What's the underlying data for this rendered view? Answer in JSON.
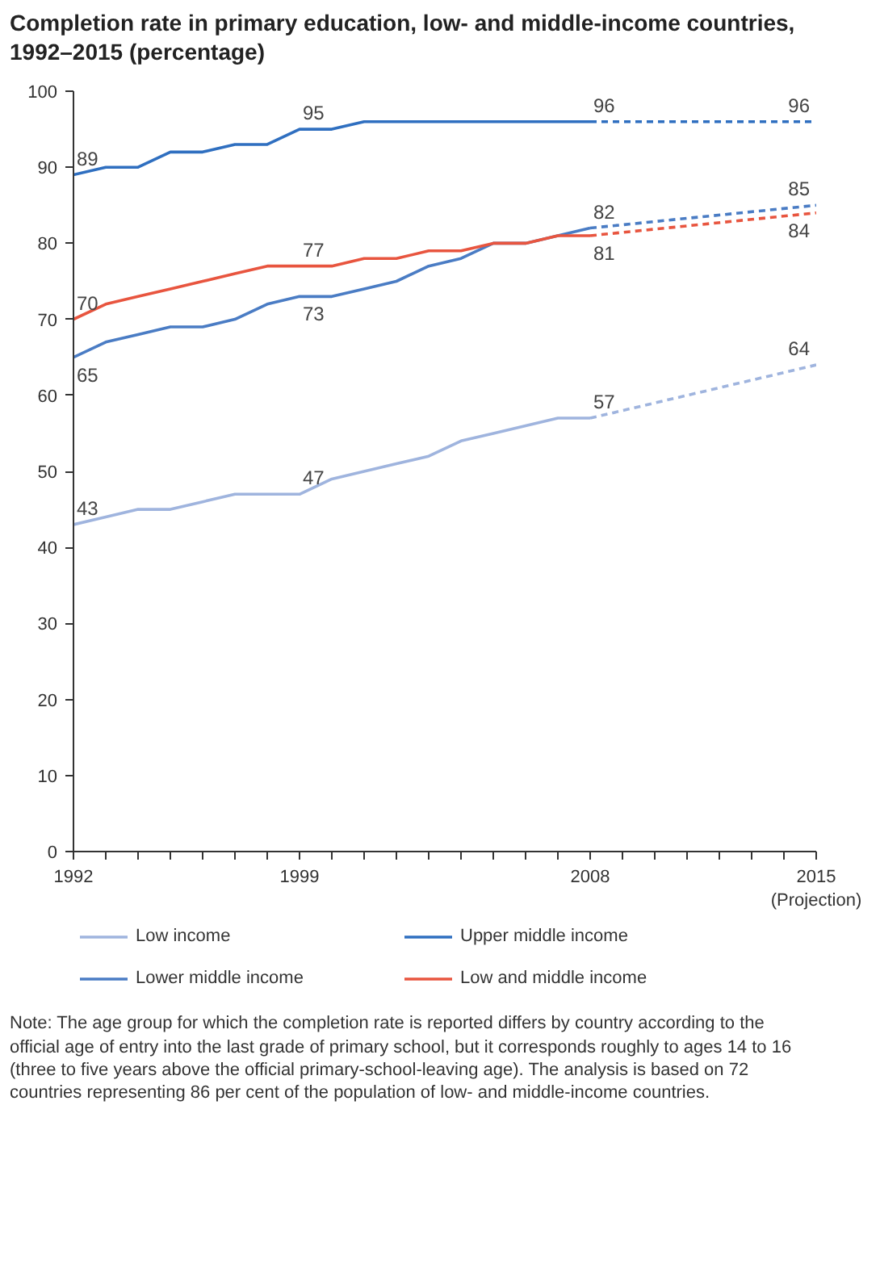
{
  "chart_data": {
    "type": "line",
    "title": "Completion rate in primary education, low- and middle-income countries, 1992–2015 (percentage)",
    "xlim": [
      1992,
      2015
    ],
    "ylim": [
      0,
      100
    ],
    "yticks": [
      0,
      10,
      20,
      30,
      40,
      50,
      60,
      70,
      80,
      90,
      100
    ],
    "xticks": [
      1992,
      {
        "value": 1993,
        "label": null
      },
      {
        "value": 1994,
        "label": null
      },
      {
        "value": 1995,
        "label": null
      },
      {
        "value": 1996,
        "label": null
      },
      {
        "value": 1997,
        "label": null
      },
      {
        "value": 1998,
        "label": null
      },
      1999,
      {
        "value": 2000,
        "label": null
      },
      {
        "value": 2001,
        "label": null
      },
      {
        "value": 2002,
        "label": null
      },
      {
        "value": 2003,
        "label": null
      },
      {
        "value": 2004,
        "label": null
      },
      {
        "value": 2005,
        "label": null
      },
      {
        "value": 2006,
        "label": null
      },
      {
        "value": 2007,
        "label": null
      },
      2008,
      {
        "value": 2009,
        "label": null
      },
      {
        "value": 2010,
        "label": null
      },
      {
        "value": 2011,
        "label": null
      },
      {
        "value": 2012,
        "label": null
      },
      {
        "value": 2013,
        "label": null
      },
      {
        "value": 2014,
        "label": null
      },
      {
        "value": 2015,
        "label": "2015\n(Projection)"
      }
    ],
    "grid": false,
    "legend": "bottom",
    "marker": "none",
    "x": [
      1992,
      1993,
      1994,
      1995,
      1996,
      1997,
      1998,
      1999,
      2000,
      2001,
      2002,
      2003,
      2004,
      2005,
      2006,
      2007,
      2008,
      2015
    ],
    "series": [
      {
        "name": "Low income",
        "color": "#9fb4de",
        "line_style": "solid",
        "values": [
          43,
          44,
          45,
          45,
          46,
          47,
          47,
          47,
          49,
          50,
          51,
          52,
          54,
          55,
          56,
          57,
          57,
          null
        ],
        "value_labels": [
          "43",
          null,
          null,
          null,
          null,
          null,
          null,
          "47",
          null,
          null,
          null,
          null,
          null,
          null,
          null,
          null,
          "57",
          null
        ]
      },
      {
        "name": "Upper middle income",
        "color": "#2f6fc0",
        "line_style": "solid",
        "values": [
          89,
          90,
          90,
          92,
          92,
          93,
          93,
          95,
          95,
          96,
          96,
          96,
          96,
          96,
          96,
          96,
          96,
          null
        ],
        "value_labels": [
          "89",
          null,
          null,
          null,
          null,
          null,
          null,
          "95",
          null,
          null,
          null,
          null,
          null,
          null,
          null,
          null,
          "96",
          null
        ]
      },
      {
        "name": "Lower middle income",
        "color": "#4a7cc4",
        "line_style": "solid",
        "values": [
          65,
          67,
          68,
          69,
          69,
          70,
          72,
          73,
          73,
          74,
          75,
          77,
          78,
          80,
          80,
          81,
          82,
          null
        ],
        "value_labels": [
          "65",
          null,
          null,
          null,
          null,
          null,
          null,
          "73",
          null,
          null,
          null,
          null,
          null,
          null,
          null,
          null,
          "82",
          null
        ]
      },
      {
        "name": "Low and middle income",
        "color": "#e8553f",
        "line_style": "solid",
        "values": [
          70,
          72,
          73,
          74,
          75,
          76,
          77,
          77,
          77,
          78,
          78,
          79,
          79,
          80,
          80,
          81,
          81,
          null
        ],
        "value_labels": [
          "70",
          null,
          null,
          null,
          null,
          null,
          null,
          "77",
          null,
          null,
          null,
          null,
          null,
          null,
          null,
          null,
          "81",
          null
        ]
      },
      {
        "color": "#9fb4de",
        "line_style": "dashed",
        "values": [
          null,
          null,
          null,
          null,
          null,
          null,
          null,
          null,
          null,
          null,
          null,
          null,
          null,
          null,
          null,
          null,
          57,
          64
        ],
        "value_labels": [
          null,
          null,
          null,
          null,
          null,
          null,
          null,
          null,
          null,
          null,
          null,
          null,
          null,
          null,
          null,
          null,
          null,
          "64"
        ]
      },
      {
        "color": "#2f6fc0",
        "line_style": "dashed",
        "values": [
          null,
          null,
          null,
          null,
          null,
          null,
          null,
          null,
          null,
          null,
          null,
          null,
          null,
          null,
          null,
          null,
          96,
          96
        ],
        "value_labels": [
          null,
          null,
          null,
          null,
          null,
          null,
          null,
          null,
          null,
          null,
          null,
          null,
          null,
          null,
          null,
          null,
          null,
          "96"
        ]
      },
      {
        "color": "#4a7cc4",
        "line_style": "dashed",
        "values": [
          null,
          null,
          null,
          null,
          null,
          null,
          null,
          null,
          null,
          null,
          null,
          null,
          null,
          null,
          null,
          null,
          82,
          85
        ],
        "value_labels": [
          null,
          null,
          null,
          null,
          null,
          null,
          null,
          null,
          null,
          null,
          null,
          null,
          null,
          null,
          null,
          null,
          null,
          "85"
        ]
      },
      {
        "color": "#e8553f",
        "line_style": "dashed",
        "values": [
          null,
          null,
          null,
          null,
          null,
          null,
          null,
          null,
          null,
          null,
          null,
          null,
          null,
          null,
          null,
          null,
          81,
          84
        ],
        "value_labels": [
          null,
          null,
          null,
          null,
          null,
          null,
          null,
          null,
          null,
          null,
          null,
          null,
          null,
          null,
          null,
          null,
          null,
          "84"
        ]
      }
    ],
    "annotations": [
      "Note: The age group for which the completion rate is reported differs by country according to the official age of entry into the last grade of primary school, but it corresponds roughly to ages 14 to 16 (three to five years above the official primary-school-leaving age). The analysis is based on 72 countries representing 86 per cent of the population of low- and middle-income countries."
    ]
  }
}
